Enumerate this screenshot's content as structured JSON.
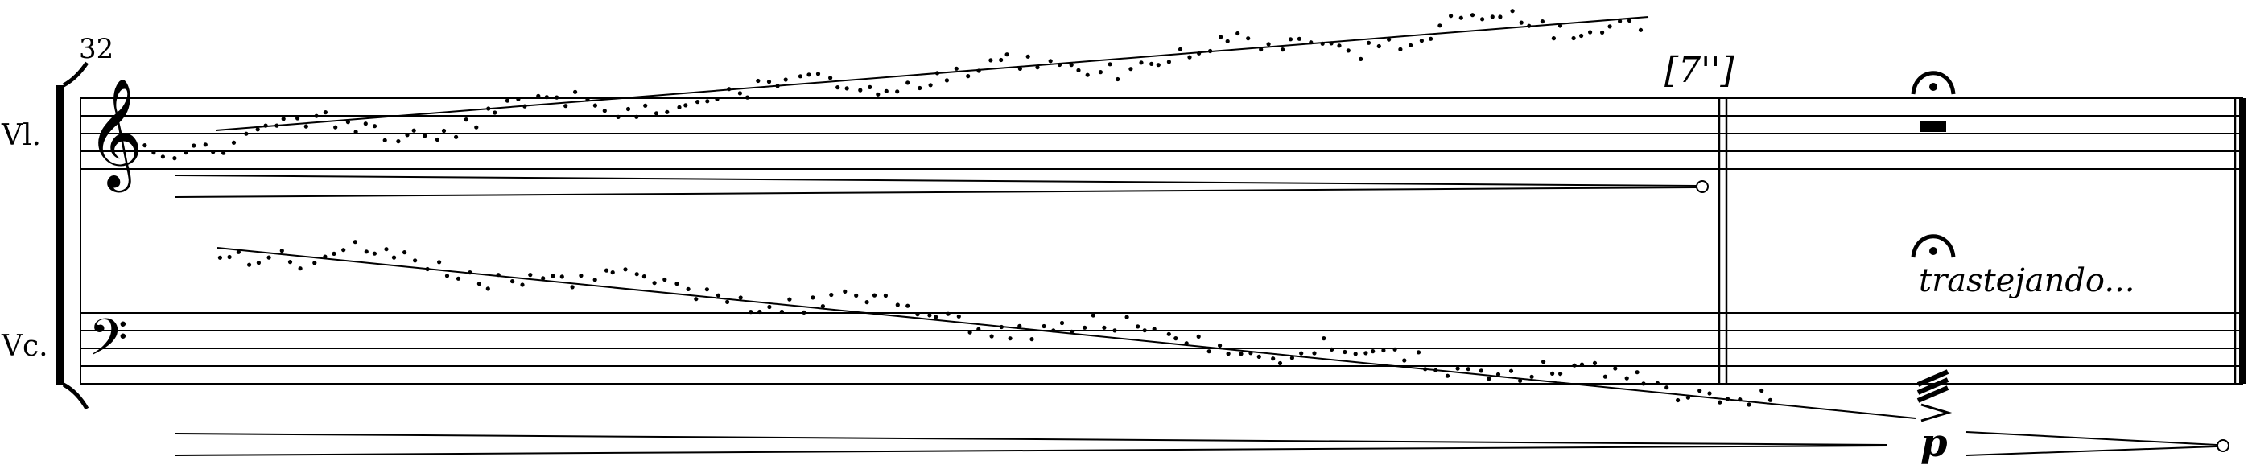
{
  "measure_number": "32",
  "instruments": [
    {
      "name": "Vl.",
      "clef": "treble"
    },
    {
      "name": "Vc.",
      "clef": "bass"
    }
  ],
  "duration_mark": "[7'']",
  "technique_text": "trastejando...",
  "dynamic": "p",
  "icons": [
    "treble-clef-icon",
    "bass-clef-icon",
    "fermata-icon",
    "half-rest-icon",
    "tremolo-icon",
    "accent-icon"
  ]
}
